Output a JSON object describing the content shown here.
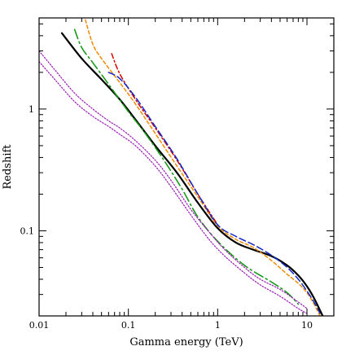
{
  "chart_data": {
    "type": "line",
    "xlabel": "Gamma energy (TeV)",
    "ylabel": "Redshift",
    "xscale": "log",
    "yscale": "log",
    "xlim": [
      0.01,
      20
    ],
    "ylim": [
      0.02,
      5.6
    ],
    "grid": false,
    "x_ticks": [
      {
        "value": 0.01,
        "label": "0.01"
      },
      {
        "value": 0.1,
        "label": "0.1"
      },
      {
        "value": 1,
        "label": "1"
      },
      {
        "value": 10,
        "label": "10"
      }
    ],
    "y_ticks": [
      {
        "value": 0.1,
        "label": "0.1"
      },
      {
        "value": 1,
        "label": "1"
      }
    ],
    "series": [
      {
        "color": "#000000",
        "dash": "solid",
        "width": 2.2,
        "points": [
          [
            0.018,
            4.2
          ],
          [
            0.03,
            2.6
          ],
          [
            0.05,
            1.75
          ],
          [
            0.08,
            1.2
          ],
          [
            0.12,
            0.82
          ],
          [
            0.2,
            0.5
          ],
          [
            0.35,
            0.3
          ],
          [
            0.6,
            0.17
          ],
          [
            1.0,
            0.105
          ],
          [
            1.6,
            0.08
          ],
          [
            2.5,
            0.07
          ],
          [
            4.0,
            0.062
          ],
          [
            6.0,
            0.052
          ],
          [
            8.0,
            0.043
          ],
          [
            10.0,
            0.035
          ],
          [
            12.0,
            0.028
          ],
          [
            15.0,
            0.02
          ]
        ]
      },
      {
        "color": "#f08a00",
        "dash": "4,3",
        "width": 1.5,
        "points": [
          [
            0.033,
            5.4
          ],
          [
            0.04,
            3.4
          ],
          [
            0.05,
            2.6
          ],
          [
            0.08,
            1.65
          ],
          [
            0.12,
            1.1
          ],
          [
            0.2,
            0.63
          ],
          [
            0.35,
            0.34
          ],
          [
            0.6,
            0.19
          ],
          [
            1.0,
            0.11
          ],
          [
            1.6,
            0.085
          ],
          [
            2.5,
            0.073
          ],
          [
            4.0,
            0.057
          ],
          [
            6.0,
            0.044
          ],
          [
            8.0,
            0.037
          ],
          [
            10.0,
            0.031
          ],
          [
            12.0,
            0.025
          ],
          [
            14.0,
            0.02
          ]
        ]
      },
      {
        "color": "#d40000",
        "dash": "6,3,2,3",
        "width": 1.5,
        "points": [
          [
            0.065,
            2.85
          ],
          [
            0.08,
            1.95
          ],
          [
            0.12,
            1.2
          ],
          [
            0.2,
            0.7
          ],
          [
            0.35,
            0.38
          ],
          [
            0.6,
            0.2
          ],
          [
            1.0,
            0.112
          ]
        ]
      },
      {
        "color": "#1428c8",
        "dash": "8,4",
        "width": 1.5,
        "points": [
          [
            0.06,
            2.0
          ],
          [
            0.08,
            1.78
          ],
          [
            0.12,
            1.25
          ],
          [
            0.2,
            0.72
          ],
          [
            0.35,
            0.39
          ],
          [
            0.6,
            0.2
          ],
          [
            1.0,
            0.112
          ],
          [
            1.6,
            0.09
          ],
          [
            2.5,
            0.077
          ],
          [
            4.0,
            0.063
          ],
          [
            6.0,
            0.05
          ],
          [
            8.0,
            0.04
          ],
          [
            10.0,
            0.032
          ],
          [
            12.0,
            0.026
          ],
          [
            14.0,
            0.021
          ]
        ]
      },
      {
        "color": "#1a9a1a",
        "dash": "12,4,2,4",
        "width": 1.6,
        "points": [
          [
            0.025,
            4.5
          ],
          [
            0.03,
            3.2
          ],
          [
            0.04,
            2.4
          ],
          [
            0.06,
            1.6
          ],
          [
            0.1,
            0.95
          ],
          [
            0.15,
            0.65
          ],
          [
            0.25,
            0.38
          ],
          [
            0.4,
            0.22
          ],
          [
            0.6,
            0.13
          ],
          [
            1.0,
            0.082
          ],
          [
            2.0,
            0.052
          ],
          [
            4.0,
            0.038
          ],
          [
            6.0,
            0.031
          ],
          [
            8.0,
            0.025
          ]
        ]
      },
      {
        "color": "#9a1ab4",
        "dash": "1.5,2",
        "width": 1.2,
        "points": [
          [
            0.01,
            3.0
          ],
          [
            0.015,
            2.1
          ],
          [
            0.025,
            1.35
          ],
          [
            0.04,
            1.0
          ],
          [
            0.06,
            0.8
          ],
          [
            0.08,
            0.7
          ],
          [
            0.12,
            0.55
          ],
          [
            0.2,
            0.38
          ],
          [
            0.3,
            0.26
          ],
          [
            0.5,
            0.15
          ],
          [
            0.8,
            0.098
          ],
          [
            1.2,
            0.07
          ],
          [
            2.0,
            0.05
          ],
          [
            3.0,
            0.04
          ],
          [
            5.0,
            0.033
          ],
          [
            8.0,
            0.026
          ],
          [
            10.0,
            0.023
          ]
        ]
      },
      {
        "color": "#9a1ab4",
        "dash": "1.5,2",
        "width": 1.2,
        "points": [
          [
            0.01,
            2.45
          ],
          [
            0.015,
            1.75
          ],
          [
            0.025,
            1.15
          ],
          [
            0.04,
            0.87
          ],
          [
            0.06,
            0.72
          ],
          [
            0.08,
            0.62
          ],
          [
            0.12,
            0.5
          ],
          [
            0.2,
            0.34
          ],
          [
            0.3,
            0.23
          ],
          [
            0.5,
            0.135
          ],
          [
            0.8,
            0.085
          ],
          [
            1.2,
            0.062
          ],
          [
            2.0,
            0.045
          ],
          [
            3.0,
            0.036
          ],
          [
            5.0,
            0.029
          ],
          [
            8.0,
            0.023
          ],
          [
            10.0,
            0.021
          ]
        ]
      }
    ]
  }
}
